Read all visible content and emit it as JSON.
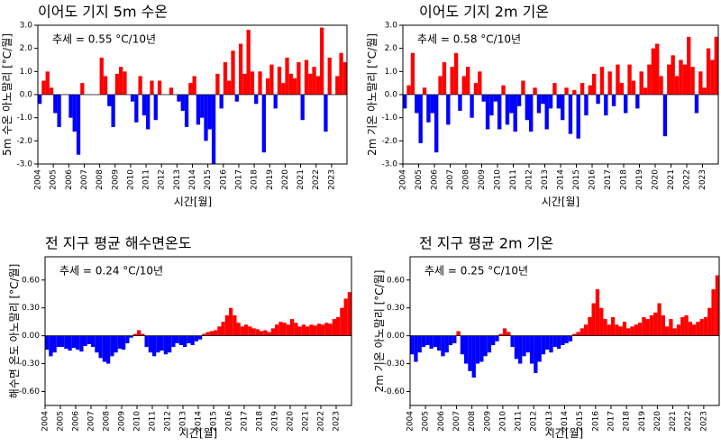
{
  "chart_data": [
    {
      "type": "bar",
      "title": "이어도 기지 5m 수온",
      "annotation": "추세 = 0.55 °C/10년",
      "x_label": "시간[월]",
      "y_label": "5m 수온 아노말리 [°C/월]",
      "positive_color": "#ff0000",
      "negative_color": "#0000ff",
      "xlim": [
        2004,
        2024
      ],
      "xticks": [
        2004,
        2005,
        2006,
        2007,
        2008,
        2009,
        2010,
        2011,
        2012,
        2013,
        2014,
        2015,
        2016,
        2017,
        2018,
        2019,
        2020,
        2021,
        2022,
        2023
      ],
      "ylim": [
        -3,
        3
      ],
      "yticks": [
        {
          "value": -3,
          "label": "-3.0"
        },
        {
          "value": -2,
          "label": "-2.0"
        },
        {
          "value": -1,
          "label": "-1.0"
        },
        {
          "value": 0,
          "label": "0.0"
        },
        {
          "value": 1,
          "label": "1.0"
        },
        {
          "value": 2,
          "label": "2.0"
        },
        {
          "value": 3,
          "label": "3.0"
        }
      ],
      "x": [
        2004,
        2004.25,
        2004.5,
        2004.75,
        2005,
        2005.25,
        2005.5,
        2005.75,
        2006,
        2006.25,
        2006.5,
        2006.75,
        2007,
        2007.25,
        2007.5,
        2007.75,
        2008,
        2008.25,
        2008.5,
        2008.75,
        2009,
        2009.25,
        2009.5,
        2009.75,
        2010,
        2010.25,
        2010.5,
        2010.75,
        2011,
        2011.25,
        2011.5,
        2011.75,
        2012,
        2012.25,
        2012.5,
        2012.75,
        2013,
        2013.25,
        2013.5,
        2013.75,
        2014,
        2014.25,
        2014.5,
        2014.75,
        2015,
        2015.25,
        2015.5,
        2015.75,
        2016,
        2016.25,
        2016.5,
        2016.75,
        2017,
        2017.25,
        2017.5,
        2017.75,
        2018,
        2018.25,
        2018.5,
        2018.75,
        2019,
        2019.25,
        2019.5,
        2019.75,
        2020,
        2020.25,
        2020.5,
        2020.75,
        2021,
        2021.25,
        2021.5,
        2021.75,
        2022,
        2022.25,
        2022.5,
        2022.75,
        2023,
        2023.25,
        2023.5,
        2023.75
      ],
      "values": [
        -0.4,
        0.6,
        1.0,
        0.3,
        -0.8,
        -1.4,
        0,
        0,
        -1.0,
        -1.6,
        -2.6,
        0.5,
        0,
        0,
        0,
        0,
        1.6,
        0.8,
        -0.5,
        -1.4,
        0.9,
        1.2,
        1.0,
        0,
        -0.3,
        -1.2,
        0.8,
        -0.9,
        -1.5,
        0.6,
        -1.1,
        0.6,
        0,
        0,
        0.3,
        0,
        -0.3,
        -0.7,
        -1.4,
        0.5,
        0.8,
        -1.3,
        -1.0,
        -2.0,
        -1.5,
        -3.0,
        0.9,
        -0.6,
        1.4,
        0.6,
        1.9,
        -0.3,
        2.2,
        0.9,
        2.8,
        1.0,
        -0.4,
        1.0,
        -2.5,
        0.7,
        1.3,
        -0.6,
        1.2,
        0.5,
        1.6,
        0.9,
        0.7,
        1.4,
        -1.1,
        1.5,
        0.9,
        1.2,
        0.8,
        2.9,
        -1.6,
        1.6,
        0,
        0.8,
        1.8,
        1.4
      ]
    },
    {
      "type": "bar",
      "title": "이어도 기지 2m 기온",
      "annotation": "추세 = 0.58 °C/10년",
      "x_label": "시간[월]",
      "y_label": "2m 기온 아노말리 [°C/월]",
      "positive_color": "#ff0000",
      "negative_color": "#0000ff",
      "xlim": [
        2004,
        2024
      ],
      "xticks": [
        2004,
        2005,
        2006,
        2007,
        2008,
        2009,
        2010,
        2011,
        2012,
        2013,
        2014,
        2015,
        2016,
        2017,
        2018,
        2019,
        2020,
        2021,
        2022,
        2023
      ],
      "ylim": [
        -3,
        3
      ],
      "yticks": [
        {
          "value": -3,
          "label": "-3.0"
        },
        {
          "value": -2,
          "label": "-2.0"
        },
        {
          "value": -1,
          "label": "-1.0"
        },
        {
          "value": 0,
          "label": "0.0"
        },
        {
          "value": 1,
          "label": "1.0"
        },
        {
          "value": 2,
          "label": "2.0"
        },
        {
          "value": 3,
          "label": "3.0"
        }
      ],
      "x": [
        2004,
        2004.25,
        2004.5,
        2004.75,
        2005,
        2005.25,
        2005.5,
        2005.75,
        2006,
        2006.25,
        2006.5,
        2006.75,
        2007,
        2007.25,
        2007.5,
        2007.75,
        2008,
        2008.25,
        2008.5,
        2008.75,
        2009,
        2009.25,
        2009.5,
        2009.75,
        2010,
        2010.25,
        2010.5,
        2010.75,
        2011,
        2011.25,
        2011.5,
        2011.75,
        2012,
        2012.25,
        2012.5,
        2012.75,
        2013,
        2013.25,
        2013.5,
        2013.75,
        2014,
        2014.25,
        2014.5,
        2014.75,
        2015,
        2015.25,
        2015.5,
        2015.75,
        2016,
        2016.25,
        2016.5,
        2016.75,
        2017,
        2017.25,
        2017.5,
        2017.75,
        2018,
        2018.25,
        2018.5,
        2018.75,
        2019,
        2019.25,
        2019.5,
        2019.75,
        2020,
        2020.25,
        2020.5,
        2020.75,
        2021,
        2021.25,
        2021.5,
        2021.75,
        2022,
        2022.25,
        2022.5,
        2022.75,
        2023,
        2023.25,
        2023.5,
        2023.75
      ],
      "values": [
        -0.6,
        0.4,
        1.8,
        -0.8,
        -2.1,
        0.3,
        -1.2,
        -0.8,
        -2.5,
        0.8,
        1.4,
        -1.3,
        1.2,
        1.8,
        -0.7,
        0.8,
        1.2,
        -1.0,
        0.5,
        1.0,
        -0.3,
        -1.5,
        -0.9,
        -0.3,
        -1.5,
        0.4,
        -1.3,
        -0.8,
        -1.6,
        -0.5,
        0.6,
        -1.1,
        -1.6,
        0.3,
        -0.8,
        -0.4,
        -1.5,
        -0.6,
        0.5,
        -0.6,
        -1.1,
        0.3,
        -1.7,
        0.2,
        -1.9,
        0.5,
        -0.9,
        0.4,
        0.9,
        -0.4,
        1.2,
        -0.9,
        1.0,
        -0.5,
        1.3,
        0.5,
        -0.8,
        1.3,
        0.6,
        -0.6,
        1.0,
        0.3,
        1.3,
        2.0,
        2.2,
        0.8,
        -1.8,
        1.3,
        1.7,
        0.8,
        1.5,
        1.3,
        2.5,
        1.2,
        -0.8,
        1.0,
        0.3,
        2.0,
        1.5,
        2.5
      ]
    },
    {
      "type": "bar",
      "title": "전 지구 평균 해수면온도",
      "annotation": "추세 = 0.24 °C/10년",
      "x_label": "시간[월]",
      "y_label": "해수면 온도 아노말리 [°C/월]",
      "positive_color": "#ff0000",
      "negative_color": "#0000ff",
      "xlim": [
        2004,
        2024
      ],
      "xticks": [
        2004,
        2005,
        2006,
        2007,
        2008,
        2009,
        2010,
        2011,
        2012,
        2013,
        2014,
        2015,
        2016,
        2017,
        2018,
        2019,
        2020,
        2021,
        2022,
        2023
      ],
      "ylim": [
        -0.75,
        0.85
      ],
      "yticks": [
        {
          "value": -0.6,
          "label": "-0.60"
        },
        {
          "value": -0.3,
          "label": "-0.30"
        },
        {
          "value": 0,
          "label": "0.00"
        },
        {
          "value": 0.3,
          "label": "0.30"
        },
        {
          "value": 0.6,
          "label": "0.60"
        }
      ],
      "x": [
        2004,
        2004.25,
        2004.5,
        2004.75,
        2005,
        2005.25,
        2005.5,
        2005.75,
        2006,
        2006.25,
        2006.5,
        2006.75,
        2007,
        2007.25,
        2007.5,
        2007.75,
        2008,
        2008.25,
        2008.5,
        2008.75,
        2009,
        2009.25,
        2009.5,
        2009.75,
        2010,
        2010.25,
        2010.5,
        2010.75,
        2011,
        2011.25,
        2011.5,
        2011.75,
        2012,
        2012.25,
        2012.5,
        2012.75,
        2013,
        2013.25,
        2013.5,
        2013.75,
        2014,
        2014.25,
        2014.5,
        2014.75,
        2015,
        2015.25,
        2015.5,
        2015.75,
        2016,
        2016.25,
        2016.5,
        2016.75,
        2017,
        2017.25,
        2017.5,
        2017.75,
        2018,
        2018.25,
        2018.5,
        2018.75,
        2019,
        2019.25,
        2019.5,
        2019.75,
        2020,
        2020.25,
        2020.5,
        2020.75,
        2021,
        2021.25,
        2021.5,
        2021.75,
        2022,
        2022.25,
        2022.5,
        2022.75,
        2023,
        2023.25,
        2023.5,
        2023.75
      ],
      "values": [
        -0.15,
        -0.22,
        -0.18,
        -0.12,
        -0.12,
        -0.14,
        -0.16,
        -0.13,
        -0.15,
        -0.17,
        -0.11,
        -0.09,
        -0.12,
        -0.18,
        -0.24,
        -0.28,
        -0.3,
        -0.22,
        -0.18,
        -0.14,
        -0.15,
        -0.08,
        -0.02,
        0.02,
        0.06,
        0.02,
        -0.12,
        -0.18,
        -0.22,
        -0.18,
        -0.16,
        -0.2,
        -0.18,
        -0.12,
        -0.08,
        -0.1,
        -0.12,
        -0.08,
        -0.1,
        -0.06,
        -0.04,
        0.02,
        0.04,
        0.05,
        0.06,
        0.1,
        0.15,
        0.22,
        0.3,
        0.22,
        0.14,
        0.1,
        0.12,
        0.1,
        0.08,
        0.07,
        0.05,
        0.06,
        0.04,
        0.08,
        0.12,
        0.15,
        0.14,
        0.12,
        0.18,
        0.14,
        0.1,
        0.12,
        0.1,
        0.12,
        0.11,
        0.13,
        0.12,
        0.14,
        0.13,
        0.18,
        0.2,
        0.3,
        0.4,
        0.47
      ]
    },
    {
      "type": "bar",
      "title": "전 지구 평균 2m 기온",
      "annotation": "추세 = 0.25 °C/10년",
      "x_label": "시간[월]",
      "y_label": "2m 기온 아노말리 [°C/월]",
      "positive_color": "#ff0000",
      "negative_color": "#0000ff",
      "xlim": [
        2004,
        2024
      ],
      "xticks": [
        2004,
        2005,
        2006,
        2007,
        2008,
        2009,
        2010,
        2011,
        2012,
        2013,
        2014,
        2015,
        2016,
        2017,
        2018,
        2019,
        2020,
        2021,
        2022,
        2023
      ],
      "ylim": [
        -0.75,
        0.85
      ],
      "yticks": [
        {
          "value": -0.6,
          "label": "-0.60"
        },
        {
          "value": -0.3,
          "label": "-0.30"
        },
        {
          "value": 0,
          "label": "0.00"
        },
        {
          "value": 0.3,
          "label": "0.30"
        },
        {
          "value": 0.6,
          "label": "0.60"
        }
      ],
      "x": [
        2004,
        2004.25,
        2004.5,
        2004.75,
        2005,
        2005.25,
        2005.5,
        2005.75,
        2006,
        2006.25,
        2006.5,
        2006.75,
        2007,
        2007.25,
        2007.5,
        2007.75,
        2008,
        2008.25,
        2008.5,
        2008.75,
        2009,
        2009.25,
        2009.5,
        2009.75,
        2010,
        2010.25,
        2010.5,
        2010.75,
        2011,
        2011.25,
        2011.5,
        2011.75,
        2012,
        2012.25,
        2012.5,
        2012.75,
        2013,
        2013.25,
        2013.5,
        2013.75,
        2014,
        2014.25,
        2014.5,
        2014.75,
        2015,
        2015.25,
        2015.5,
        2015.75,
        2016,
        2016.25,
        2016.5,
        2016.75,
        2017,
        2017.25,
        2017.5,
        2017.75,
        2018,
        2018.25,
        2018.5,
        2018.75,
        2019,
        2019.25,
        2019.5,
        2019.75,
        2020,
        2020.25,
        2020.5,
        2020.75,
        2021,
        2021.25,
        2021.5,
        2021.75,
        2022,
        2022.25,
        2022.5,
        2022.75,
        2023,
        2023.25,
        2023.5,
        2023.75
      ],
      "values": [
        -0.2,
        -0.28,
        -0.18,
        -0.12,
        -0.1,
        -0.14,
        -0.12,
        -0.16,
        -0.22,
        -0.18,
        -0.1,
        -0.08,
        0.05,
        -0.2,
        -0.3,
        -0.38,
        -0.45,
        -0.3,
        -0.28,
        -0.22,
        -0.18,
        -0.1,
        -0.06,
        0.02,
        0.08,
        0.04,
        -0.12,
        -0.25,
        -0.3,
        -0.22,
        -0.18,
        -0.3,
        -0.4,
        -0.28,
        -0.2,
        -0.15,
        -0.18,
        -0.12,
        -0.14,
        -0.1,
        -0.08,
        -0.06,
        0.02,
        0.04,
        0.08,
        0.12,
        0.2,
        0.35,
        0.5,
        0.3,
        0.18,
        0.12,
        0.2,
        0.12,
        0.1,
        0.15,
        0.08,
        0.1,
        0.12,
        0.14,
        0.2,
        0.18,
        0.22,
        0.25,
        0.35,
        0.22,
        0.1,
        0.18,
        0.08,
        0.12,
        0.2,
        0.22,
        0.15,
        0.12,
        0.15,
        0.18,
        0.2,
        0.3,
        0.5,
        0.65
      ]
    }
  ]
}
